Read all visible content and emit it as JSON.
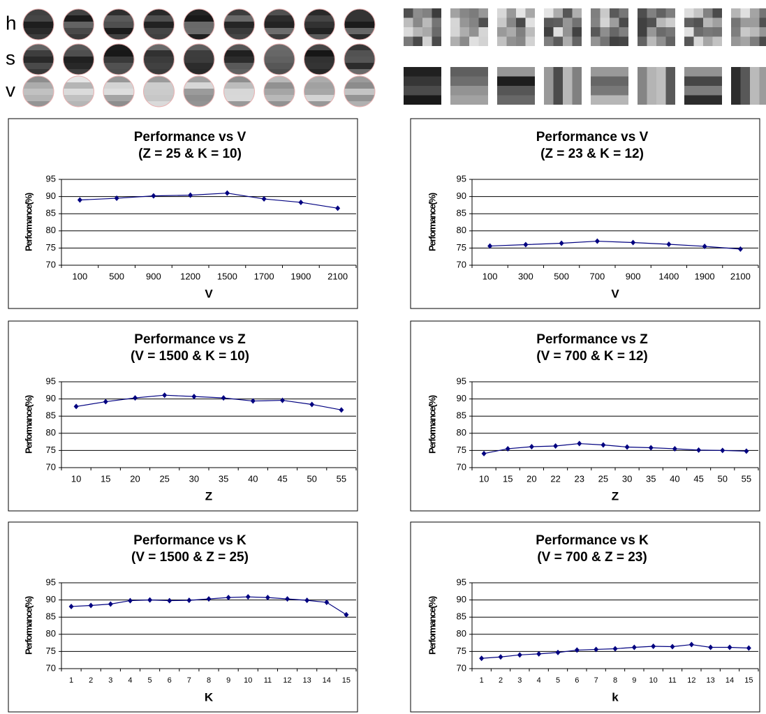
{
  "panel_labels": [
    "h",
    "s",
    "v"
  ],
  "chart_data": [
    {
      "type": "line",
      "title": "Performance vs V",
      "subtitle": "(Z = 25 & K = 10)",
      "x_label": "V",
      "y_label": "Performance(%)",
      "categories": [
        "100",
        "500",
        "900",
        "1200",
        "1500",
        "1700",
        "1900",
        "2100"
      ],
      "values": [
        89,
        89.5,
        90.2,
        90.4,
        91,
        89.3,
        88.3,
        86.6
      ],
      "color": "#000080",
      "ylim": [
        70,
        95
      ],
      "yticks": [
        70,
        75,
        80,
        85,
        90,
        95
      ],
      "grid": true
    },
    {
      "type": "line",
      "title": "Performance vs V",
      "subtitle": "(Z = 23 & K = 12)",
      "x_label": "V",
      "y_label": "Performance(%)",
      "categories": [
        "100",
        "300",
        "500",
        "700",
        "900",
        "1400",
        "1900",
        "2100"
      ],
      "values": [
        75.6,
        76,
        76.4,
        77,
        76.6,
        76.1,
        75.5,
        74.7
      ],
      "color": "#000080",
      "ylim": [
        70,
        95
      ],
      "yticks": [
        70,
        75,
        80,
        85,
        90,
        95
      ],
      "grid": true
    },
    {
      "type": "line",
      "title": "Performance vs Z",
      "subtitle": "(V = 1500 & K = 10)",
      "x_label": "Z",
      "y_label": "Performance(%)",
      "categories": [
        "10",
        "15",
        "20",
        "25",
        "30",
        "35",
        "40",
        "45",
        "50",
        "55"
      ],
      "values": [
        87.8,
        89.2,
        90.3,
        91.1,
        90.7,
        90.3,
        89.4,
        89.6,
        88.4,
        86.8
      ],
      "color": "#000080",
      "ylim": [
        70,
        95
      ],
      "yticks": [
        70,
        75,
        80,
        85,
        90,
        95
      ],
      "grid": true
    },
    {
      "type": "line",
      "title": "Performance vs Z",
      "subtitle": "(V = 700 & K = 12)",
      "x_label": "Z",
      "y_label": "Performance(%)",
      "categories": [
        "10",
        "15",
        "20",
        "22",
        "23",
        "25",
        "30",
        "35",
        "40",
        "45",
        "50",
        "55"
      ],
      "values": [
        74.1,
        75.5,
        76.1,
        76.3,
        77,
        76.6,
        76,
        75.8,
        75.5,
        75.1,
        75,
        74.8
      ],
      "color": "#000080",
      "ylim": [
        70,
        95
      ],
      "yticks": [
        70,
        75,
        80,
        85,
        90,
        95
      ],
      "grid": true
    },
    {
      "type": "line",
      "title": "Performance vs K",
      "subtitle": "(V = 1500 & Z = 25)",
      "x_label": "K",
      "y_label": "Performance(%)",
      "categories": [
        "1",
        "2",
        "3",
        "4",
        "5",
        "6",
        "7",
        "8",
        "9",
        "10",
        "11",
        "12",
        "13",
        "14",
        "15"
      ],
      "values": [
        88.1,
        88.4,
        88.8,
        89.8,
        90,
        89.8,
        89.9,
        90.3,
        90.7,
        90.9,
        90.7,
        90.3,
        89.9,
        89.3,
        85.7
      ],
      "color": "#000080",
      "ylim": [
        70,
        95
      ],
      "yticks": [
        70,
        75,
        80,
        85,
        90,
        95
      ],
      "grid": true
    },
    {
      "type": "line",
      "title": "Performance vs K",
      "subtitle": "(V = 700 & Z = 23)",
      "x_label": "k",
      "y_label": "Performance(%)",
      "categories": [
        "1",
        "2",
        "3",
        "4",
        "5",
        "6",
        "7",
        "8",
        "9",
        "10",
        "11",
        "12",
        "13",
        "14",
        "15"
      ],
      "values": [
        73,
        73.4,
        74,
        74.3,
        74.7,
        75.4,
        75.6,
        75.8,
        76.2,
        76.5,
        76.4,
        77,
        76.2,
        76.2,
        76
      ],
      "color": "#000080",
      "ylim": [
        70,
        95
      ],
      "yticks": [
        70,
        75,
        80,
        85,
        90,
        95
      ],
      "grid": true
    }
  ]
}
